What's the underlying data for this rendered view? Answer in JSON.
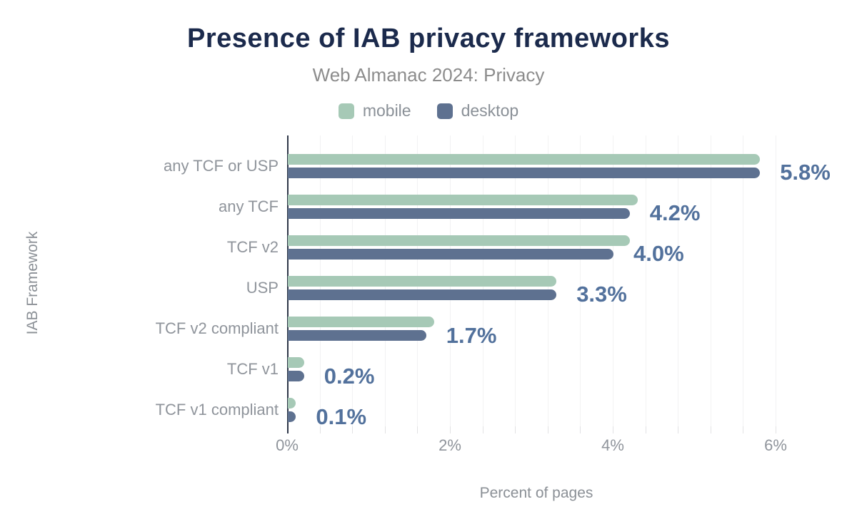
{
  "header": {
    "title": "Presence of IAB privacy frameworks",
    "subtitle": "Web Almanac 2024: Privacy"
  },
  "legend": {
    "items": [
      {
        "label": "mobile",
        "color": "#a6c9b6"
      },
      {
        "label": "desktop",
        "color": "#5e7190"
      }
    ]
  },
  "chart_data": {
    "type": "bar",
    "orientation": "horizontal",
    "title": "Presence of IAB privacy frameworks",
    "subtitle": "Web Almanac 2024: Privacy",
    "categories": [
      "any TCF or USP",
      "any TCF",
      "TCF v2",
      "USP",
      "TCF v2 compliant",
      "TCF v1",
      "TCF v1 compliant"
    ],
    "series": [
      {
        "name": "mobile",
        "color": "#a6c9b6",
        "values": [
          5.8,
          4.3,
          4.2,
          3.3,
          1.8,
          0.2,
          0.1
        ]
      },
      {
        "name": "desktop",
        "color": "#5e7190",
        "values": [
          5.8,
          4.2,
          4.0,
          3.3,
          1.7,
          0.2,
          0.1
        ]
      }
    ],
    "data_labels": [
      "5.8%",
      "4.2%",
      "4.0%",
      "3.3%",
      "1.7%",
      "0.2%",
      "0.1%"
    ],
    "data_labels_series": "desktop",
    "xlabel": "Percent of pages",
    "ylabel": "IAB Framework",
    "x_tick_labels": [
      "0%",
      "2%",
      "4%",
      "6%"
    ],
    "x_tick_values": [
      0,
      2,
      4,
      6
    ],
    "xlim": [
      0,
      6.2
    ],
    "grid": "vertical minor gridlines every 0.4%",
    "legend_position": "top"
  },
  "colors": {
    "title": "#1b2a4c",
    "subtitle": "#8c8c8c",
    "axis_label": "#8f949b",
    "data_label": "#52719c",
    "axis_line": "#2e3748",
    "gridline": "#f2f2f3",
    "background": "#ffffff"
  }
}
